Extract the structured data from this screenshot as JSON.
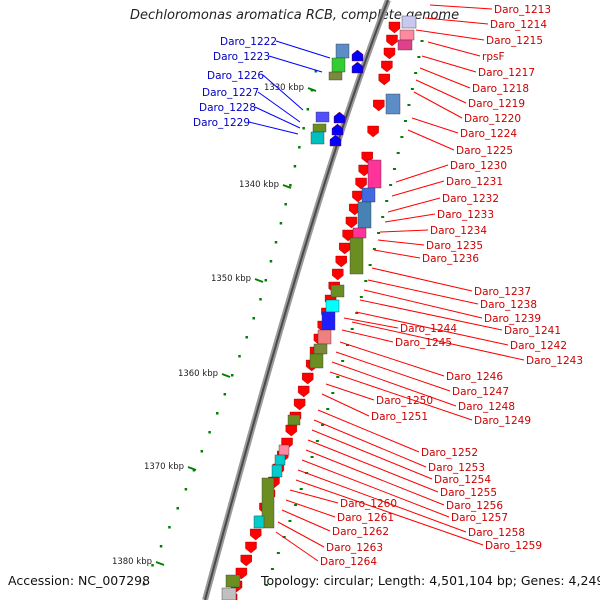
{
  "title": "Dechloromonas aromatica RCB, complete genome",
  "footer": {
    "accession": "Accession: NC_007298",
    "topology": "Topology: circular; Length: 4,501,104 bp; Genes: 4,249"
  },
  "kbp_ticks": [
    "1330 kbp",
    "1340 kbp",
    "1350 kbp",
    "1360 kbp",
    "1370 kbp",
    "1380 kbp"
  ],
  "left_genes": [
    "Daro_1222",
    "Daro_1223",
    "Daro_1226",
    "Daro_1227",
    "Daro_1228",
    "Daro_1229"
  ],
  "right_genes": [
    "Daro_1213",
    "Daro_1214",
    "Daro_1215",
    "rpsF",
    "Daro_1217",
    "Daro_1218",
    "Daro_1219",
    "Daro_1220",
    "Daro_1224",
    "Daro_1225",
    "Daro_1230",
    "Daro_1231",
    "Daro_1232",
    "Daro_1233",
    "Daro_1234",
    "Daro_1235",
    "Daro_1236",
    "Daro_1237",
    "Daro_1238",
    "Daro_1239",
    "Daro_1241",
    "Daro_1242",
    "Daro_1243",
    "Daro_1244",
    "Daro_1245",
    "Daro_1246",
    "Daro_1247",
    "Daro_1248",
    "Daro_1249",
    "Daro_1250",
    "Daro_1251",
    "Daro_1252",
    "Daro_1253",
    "Daro_1254",
    "Daro_1255",
    "Daro_1256",
    "Daro_1257",
    "Daro_1258",
    "Daro_1259",
    "Daro_1260",
    "Daro_1261",
    "Daro_1262",
    "Daro_1263",
    "Daro_1264"
  ],
  "colors": {
    "forward_gene": "#ff0000",
    "reverse_gene": "#0000ff",
    "left_label": "#0000c0",
    "right_label": "#cc0000",
    "tick": "#008000",
    "backbone": "#888888"
  }
}
